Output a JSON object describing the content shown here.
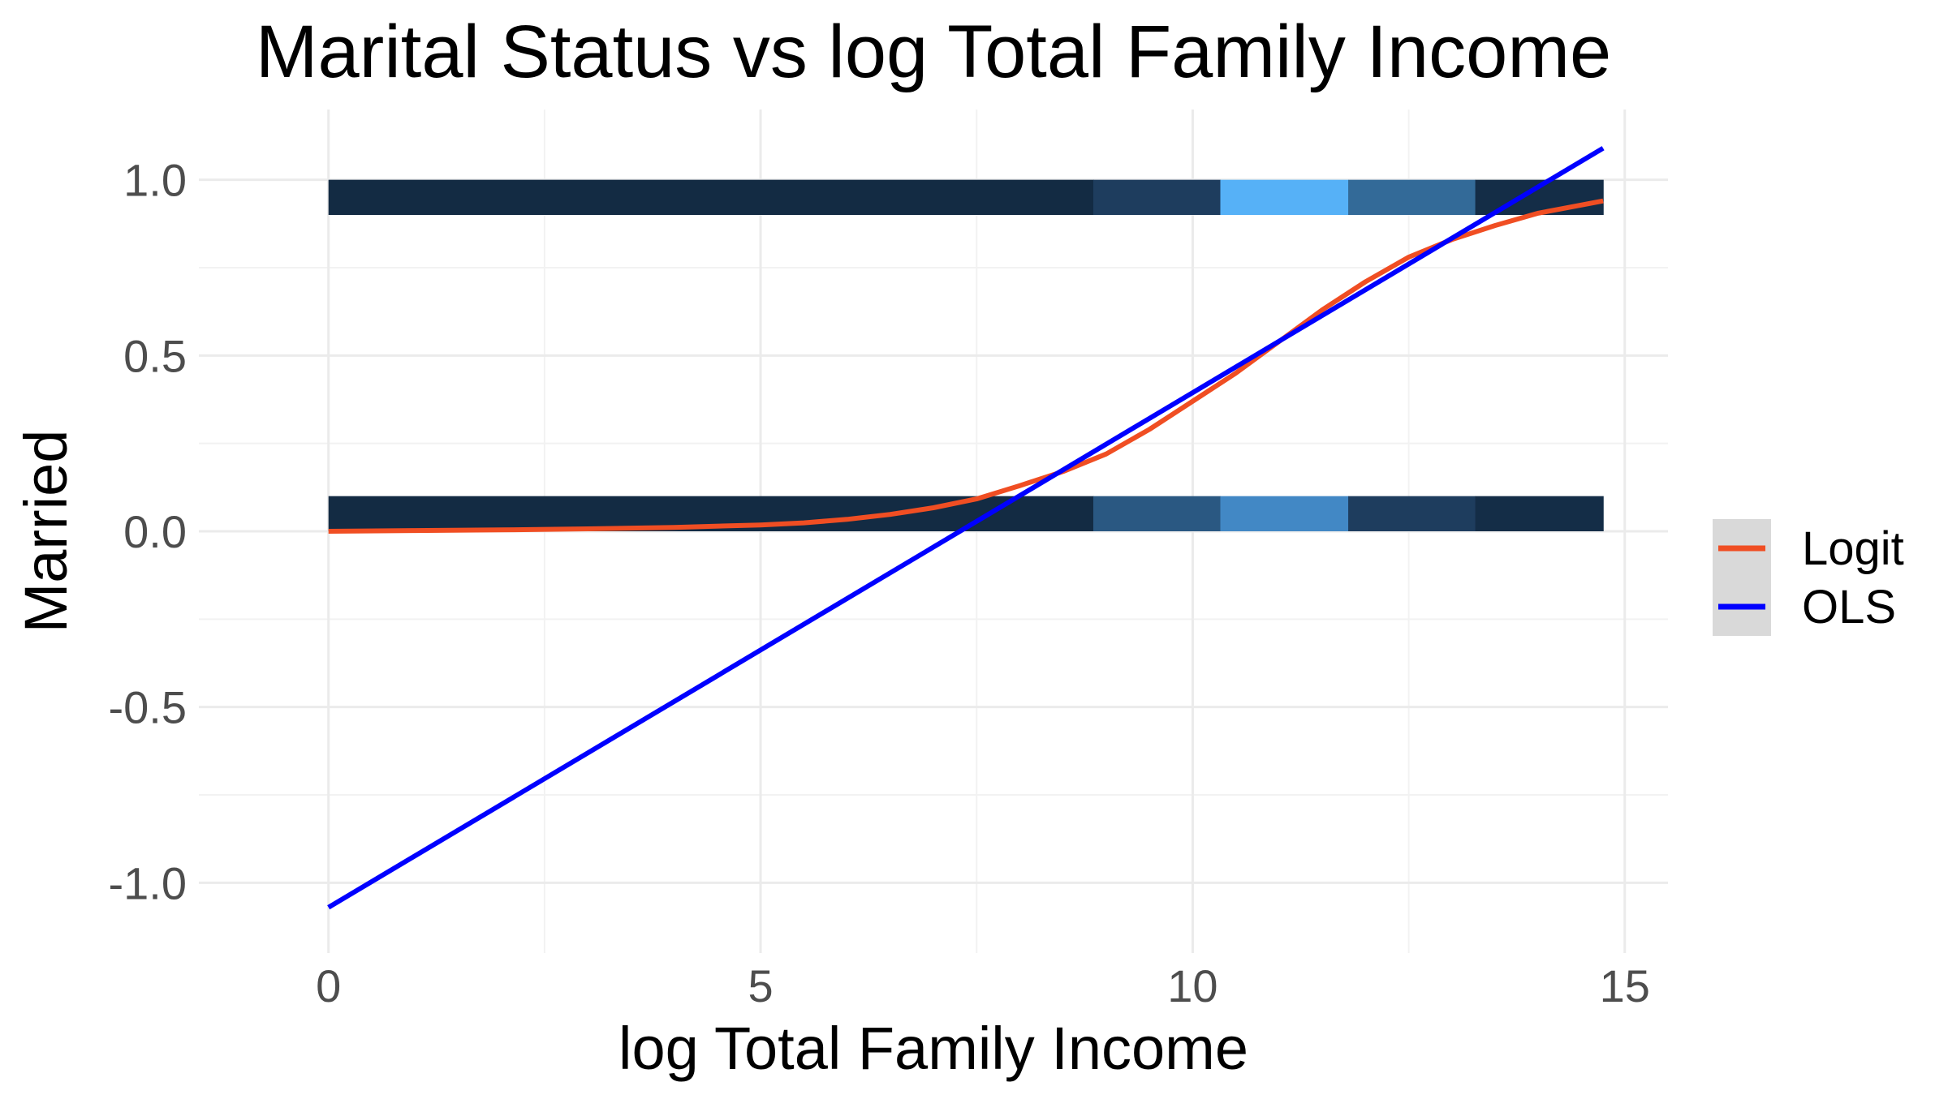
{
  "chart_data": {
    "type": "line",
    "title": "Marital Status vs log Total Family Income",
    "xlabel": "log Total Family Income",
    "ylabel": "Married",
    "xlim": [
      -1.5,
      15.5
    ],
    "ylim": [
      -1.2,
      1.2
    ],
    "x_ticks": [
      {
        "value": 0,
        "label": "0"
      },
      {
        "value": 5,
        "label": "5"
      },
      {
        "value": 10,
        "label": "10"
      },
      {
        "value": 15,
        "label": "15"
      }
    ],
    "y_ticks": [
      {
        "value": -1.0,
        "label": "-1.0"
      },
      {
        "value": -0.5,
        "label": "-0.5"
      },
      {
        "value": 0.0,
        "label": "0.0"
      },
      {
        "value": 0.5,
        "label": "0.5"
      },
      {
        "value": 1.0,
        "label": "1.0"
      }
    ],
    "grid": true,
    "legend": {
      "position": "right",
      "entries": [
        {
          "label": "Logit",
          "color": "#f04e23"
        },
        {
          "label": "OLS",
          "color": "#0000ff"
        }
      ]
    },
    "series": [
      {
        "name": "Logit",
        "color": "#f04e23",
        "x": [
          0,
          1,
          2,
          3,
          4,
          5,
          5.5,
          6,
          6.5,
          7,
          7.5,
          8,
          8.5,
          9,
          9.5,
          10,
          10.5,
          11,
          11.5,
          12,
          12.5,
          13,
          13.5,
          14,
          14.75
        ],
        "y": [
          0.0,
          0.002,
          0.004,
          0.007,
          0.011,
          0.018,
          0.024,
          0.034,
          0.048,
          0.067,
          0.092,
          0.13,
          0.17,
          0.22,
          0.29,
          0.37,
          0.45,
          0.54,
          0.63,
          0.71,
          0.78,
          0.83,
          0.87,
          0.905,
          0.94
        ]
      },
      {
        "name": "OLS",
        "color": "#0000ff",
        "x": [
          0,
          14.75
        ],
        "y": [
          -1.07,
          1.09
        ]
      }
    ],
    "heat_bands": [
      {
        "y": 0.95,
        "bins": [
          {
            "x0": 0.0,
            "x1": 8.85,
            "color": "#132b43"
          },
          {
            "x0": 8.85,
            "x1": 10.32,
            "color": "#1e3d5e"
          },
          {
            "x0": 10.32,
            "x1": 11.8,
            "color": "#56b1f7"
          },
          {
            "x0": 11.8,
            "x1": 13.27,
            "color": "#336a98"
          },
          {
            "x0": 13.27,
            "x1": 14.75,
            "color": "#142d47"
          }
        ]
      },
      {
        "y": 0.05,
        "bins": [
          {
            "x0": 0.0,
            "x1": 8.85,
            "color": "#132b43"
          },
          {
            "x0": 8.85,
            "x1": 10.32,
            "color": "#2a5882"
          },
          {
            "x0": 10.32,
            "x1": 11.8,
            "color": "#4288c5"
          },
          {
            "x0": 11.8,
            "x1": 13.27,
            "color": "#1e3d5e"
          },
          {
            "x0": 13.27,
            "x1": 14.75,
            "color": "#142d47"
          }
        ]
      }
    ]
  }
}
